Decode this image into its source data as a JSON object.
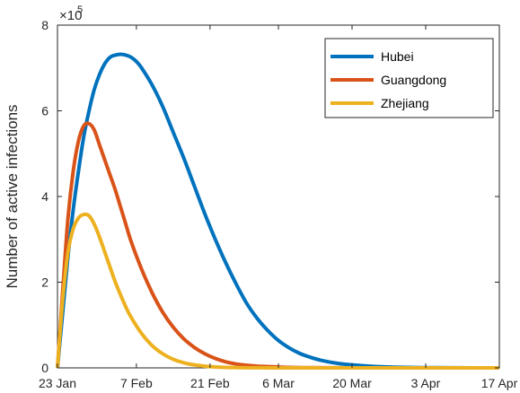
{
  "chart_data": {
    "type": "line",
    "ylabel": "Number of active infections",
    "y_exponent_label": "×10",
    "y_exponent_power": "5",
    "x_ticks": [
      "23 Jan",
      "7 Feb",
      "21 Feb",
      "6 Mar",
      "20 Mar",
      "3 Apr",
      "17 Apr"
    ],
    "x_tick_days": [
      0,
      15,
      29,
      42,
      56,
      70,
      84
    ],
    "y_ticks": [
      0,
      2,
      4,
      6,
      8
    ],
    "xlim": [
      0,
      84
    ],
    "ylim": [
      0,
      8
    ],
    "y_scale_factor": 100000,
    "grid": false,
    "legend_position": "top-right",
    "series": [
      {
        "name": "Hubei",
        "color": "#0072BD",
        "x": [
          0,
          1,
          2,
          3,
          4,
          5,
          6,
          7,
          8,
          9,
          10,
          11,
          12,
          13,
          14,
          15,
          16,
          18,
          20,
          22,
          24,
          26,
          28,
          30,
          32,
          34,
          36,
          38,
          40,
          42,
          44,
          46,
          48,
          50,
          53,
          56,
          60,
          64,
          68,
          72,
          76,
          80,
          84
        ],
        "y": [
          0.0,
          1.3,
          2.6,
          3.7,
          4.6,
          5.4,
          6.0,
          6.5,
          6.85,
          7.1,
          7.25,
          7.3,
          7.32,
          7.3,
          7.25,
          7.15,
          7.0,
          6.6,
          6.1,
          5.5,
          4.9,
          4.25,
          3.6,
          3.0,
          2.45,
          1.95,
          1.5,
          1.15,
          0.87,
          0.64,
          0.47,
          0.34,
          0.25,
          0.18,
          0.11,
          0.07,
          0.035,
          0.017,
          0.008,
          0.004,
          0.002,
          0.001,
          0.0
        ]
      },
      {
        "name": "Guangdong",
        "color": "#D95319",
        "x": [
          0,
          1,
          2,
          3,
          4,
          5,
          6,
          7,
          8,
          9,
          10,
          11,
          12,
          13,
          14,
          16,
          18,
          20,
          22,
          24,
          26,
          28,
          30,
          32,
          34,
          36,
          38,
          40,
          42,
          44,
          48,
          52,
          56,
          60,
          70,
          84
        ],
        "y": [
          0.0,
          1.8,
          3.5,
          4.6,
          5.3,
          5.65,
          5.7,
          5.55,
          5.2,
          4.85,
          4.5,
          4.15,
          3.75,
          3.35,
          2.95,
          2.3,
          1.75,
          1.3,
          0.95,
          0.68,
          0.48,
          0.33,
          0.22,
          0.14,
          0.09,
          0.06,
          0.04,
          0.03,
          0.02,
          0.01,
          0.005,
          0.002,
          0.001,
          0.0,
          0.0,
          0.0
        ]
      },
      {
        "name": "Zhejiang",
        "color": "#EDB120",
        "x": [
          0,
          1,
          2,
          3,
          4,
          5,
          6,
          7,
          8,
          9,
          10,
          11,
          12,
          13,
          14,
          16,
          18,
          20,
          22,
          24,
          26,
          28,
          30,
          32,
          34,
          36,
          40,
          44,
          50,
          60,
          84
        ],
        "y": [
          0.0,
          1.6,
          2.7,
          3.25,
          3.5,
          3.58,
          3.55,
          3.35,
          3.05,
          2.7,
          2.35,
          2.0,
          1.7,
          1.42,
          1.18,
          0.8,
          0.52,
          0.33,
          0.2,
          0.12,
          0.07,
          0.04,
          0.02,
          0.01,
          0.006,
          0.003,
          0.001,
          0.0,
          0.0,
          0.0,
          0.0
        ]
      }
    ]
  }
}
